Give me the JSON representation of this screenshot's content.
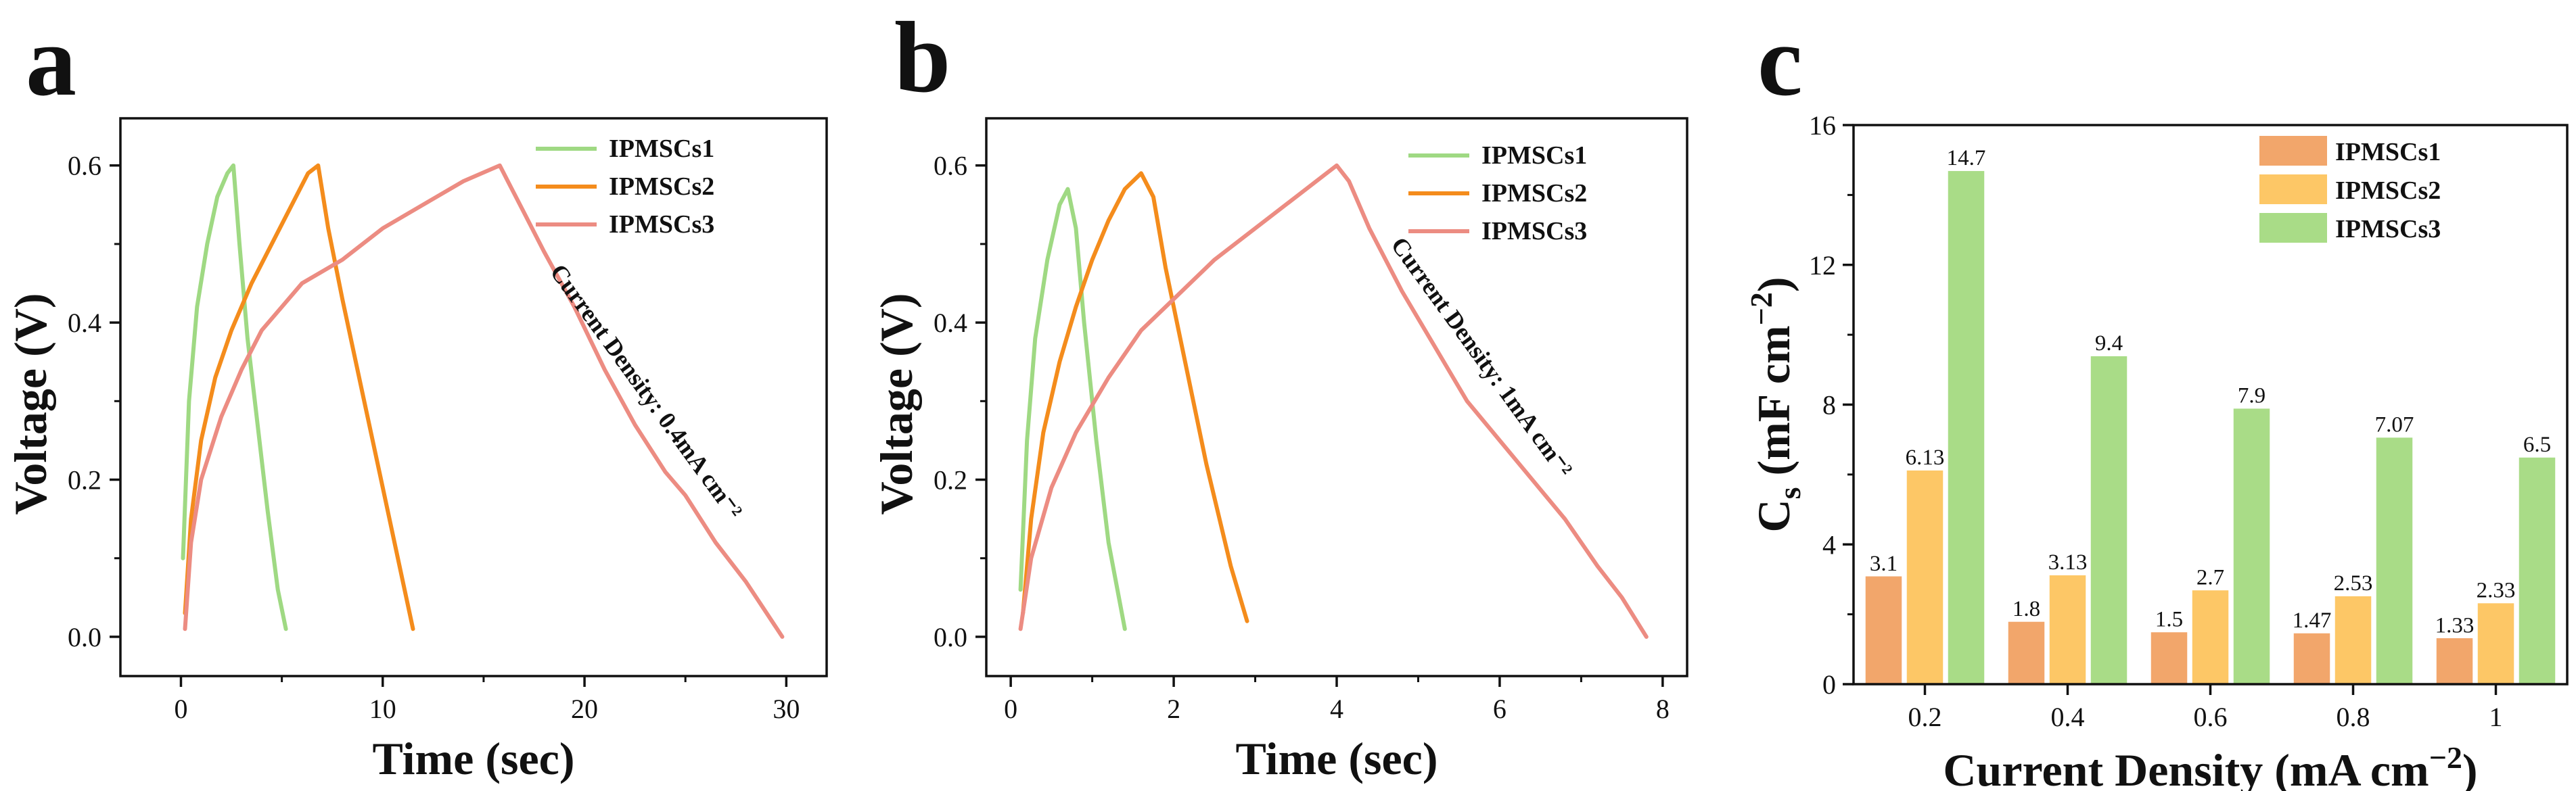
{
  "chart_data": [
    {
      "panel": "a",
      "type": "line",
      "xlabel": "Time (sec)",
      "ylabel": "Voltage (V)",
      "xlim": [
        -3,
        32
      ],
      "ylim": [
        -0.05,
        0.66
      ],
      "xticks": [
        0,
        10,
        20,
        30
      ],
      "yticks": [
        0.0,
        0.2,
        0.4,
        0.6
      ],
      "xtick_labels": [
        "0",
        "10",
        "20",
        "30"
      ],
      "ytick_labels": [
        "0.0",
        "0.2",
        "0.4",
        "0.6"
      ],
      "annotation": "Current Density: 0.4mA cm⁻²",
      "series": [
        {
          "name": "IPMSCs1",
          "color": "#9fd983",
          "x": [
            0.1,
            0.4,
            0.8,
            1.3,
            1.8,
            2.3,
            2.6,
            2.9,
            3.3,
            3.8,
            4.3,
            4.8,
            5.2
          ],
          "y": [
            0.1,
            0.3,
            0.42,
            0.5,
            0.56,
            0.59,
            0.6,
            0.5,
            0.38,
            0.27,
            0.16,
            0.06,
            0.01
          ]
        },
        {
          "name": "IPMSCs2",
          "color": "#f48c1c",
          "x": [
            0.2,
            0.5,
            1.0,
            1.7,
            2.5,
            3.5,
            4.5,
            5.5,
            6.3,
            6.8,
            7.3,
            8.0,
            9.0,
            10.0,
            11.0,
            11.5
          ],
          "y": [
            0.03,
            0.15,
            0.25,
            0.33,
            0.39,
            0.45,
            0.5,
            0.55,
            0.59,
            0.6,
            0.52,
            0.43,
            0.31,
            0.19,
            0.07,
            0.01
          ]
        },
        {
          "name": "IPMSCs3",
          "color": "#ec8c82",
          "x": [
            0.2,
            0.5,
            1.0,
            2.0,
            3.0,
            4.0,
            5.0,
            6.0,
            8.0,
            10.0,
            12.0,
            14.0,
            15.8,
            16.2,
            17.0,
            18.0,
            19.5,
            21.0,
            22.5,
            24.0,
            25.0,
            26.5,
            28.0,
            29.8
          ],
          "y": [
            0.01,
            0.12,
            0.2,
            0.28,
            0.34,
            0.39,
            0.42,
            0.45,
            0.48,
            0.52,
            0.55,
            0.58,
            0.6,
            0.58,
            0.54,
            0.49,
            0.42,
            0.34,
            0.27,
            0.21,
            0.18,
            0.12,
            0.07,
            0.0
          ]
        }
      ]
    },
    {
      "panel": "b",
      "type": "line",
      "xlabel": "Time (sec)",
      "ylabel": "Voltage (V)",
      "xlim": [
        -0.3,
        8.3
      ],
      "ylim": [
        -0.05,
        0.66
      ],
      "xticks": [
        0,
        2,
        4,
        6,
        8
      ],
      "yticks": [
        0.0,
        0.2,
        0.4,
        0.6
      ],
      "xtick_labels": [
        "0",
        "2",
        "4",
        "6",
        "8"
      ],
      "ytick_labels": [
        "0.0",
        "0.2",
        "0.4",
        "0.6"
      ],
      "annotation": "Current Density: 1mA cm⁻²",
      "series": [
        {
          "name": "IPMSCs1",
          "color": "#9fd983",
          "x": [
            0.12,
            0.2,
            0.3,
            0.45,
            0.6,
            0.7,
            0.8,
            0.9,
            1.05,
            1.2,
            1.4
          ],
          "y": [
            0.06,
            0.25,
            0.38,
            0.48,
            0.55,
            0.57,
            0.52,
            0.4,
            0.25,
            0.12,
            0.01
          ]
        },
        {
          "name": "IPMSCs2",
          "color": "#f48c1c",
          "x": [
            0.15,
            0.25,
            0.4,
            0.6,
            0.8,
            1.0,
            1.2,
            1.4,
            1.6,
            1.75,
            1.9,
            2.1,
            2.4,
            2.7,
            2.9
          ],
          "y": [
            0.03,
            0.15,
            0.26,
            0.35,
            0.42,
            0.48,
            0.53,
            0.57,
            0.59,
            0.56,
            0.47,
            0.37,
            0.22,
            0.09,
            0.02
          ]
        },
        {
          "name": "IPMSCs3",
          "color": "#ec8c82",
          "x": [
            0.12,
            0.25,
            0.5,
            0.8,
            1.2,
            1.6,
            2.0,
            2.5,
            3.0,
            3.5,
            4.0,
            4.15,
            4.4,
            4.8,
            5.2,
            5.6,
            6.0,
            6.4,
            6.8,
            7.2,
            7.5,
            7.8
          ],
          "y": [
            0.01,
            0.1,
            0.19,
            0.26,
            0.33,
            0.39,
            0.43,
            0.48,
            0.52,
            0.56,
            0.6,
            0.58,
            0.52,
            0.44,
            0.37,
            0.3,
            0.25,
            0.2,
            0.15,
            0.09,
            0.05,
            0.0
          ]
        }
      ]
    },
    {
      "panel": "c",
      "type": "bar",
      "xlabel": "Current Density (mA cm−2)",
      "xlabel_main": "Current Density (mA cm",
      "xlabel_sup": "−2",
      "xlabel_close": ")",
      "ylabel": "Cs (mF cm−2)",
      "ylabel_main": "C",
      "ylabel_sub": "s",
      "ylabel_mid": " (mF cm",
      "ylabel_sup": "−2",
      "ylabel_close": ")",
      "ylim": [
        0,
        16
      ],
      "yticks": [
        0,
        4,
        8,
        12,
        16
      ],
      "ytick_labels": [
        "0",
        "4",
        "8",
        "12",
        "16"
      ],
      "categories": [
        "0.2",
        "0.4",
        "0.6",
        "0.8",
        "1"
      ],
      "series": [
        {
          "name": "IPMSCs1",
          "color": "#f2a66b",
          "values": [
            3.1,
            1.8,
            1.5,
            1.47,
            1.33
          ],
          "labels": [
            "3.1",
            "1.8",
            "1.5",
            "1.47",
            "1.33"
          ]
        },
        {
          "name": "IPMSCs2",
          "color": "#fdc766",
          "values": [
            6.13,
            3.13,
            2.7,
            2.53,
            2.33
          ],
          "labels": [
            "6.13",
            "3.13",
            "2.7",
            "2.53",
            "2.33"
          ]
        },
        {
          "name": "IPMSCs3",
          "color": "#a9dc87",
          "values": [
            14.7,
            9.4,
            7.9,
            7.07,
            6.5
          ],
          "labels": [
            "14.7",
            "9.4",
            "7.9",
            "7.07",
            "6.5"
          ]
        }
      ]
    }
  ]
}
